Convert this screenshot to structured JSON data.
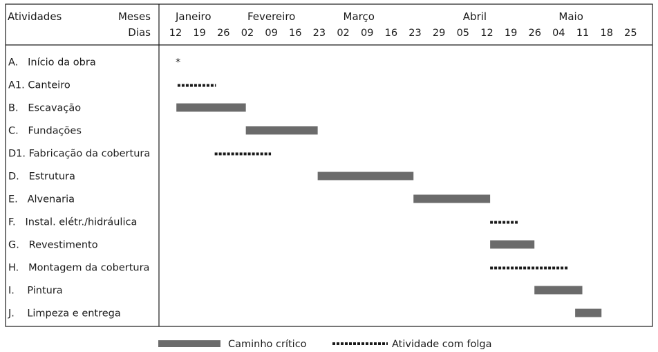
{
  "chart_data": {
    "type": "gantt",
    "header": {
      "activities_label": "Atividades",
      "months_label": "Meses",
      "days_label": "Dias"
    },
    "months": [
      {
        "name": "Janeiro",
        "column": 0
      },
      {
        "name": "Fevereiro",
        "column": 3
      },
      {
        "name": "Março",
        "column": 7
      },
      {
        "name": "Abril",
        "column": 12
      },
      {
        "name": "Maio",
        "column": 16
      }
    ],
    "day_ticks": [
      "12",
      "19",
      "26",
      "02",
      "09",
      "16",
      "23",
      "02",
      "09",
      "16",
      "23",
      "29",
      "05",
      "12",
      "19",
      "26",
      "04",
      "11",
      "18",
      "25"
    ],
    "tasks": [
      {
        "label": "A.   Início da obra",
        "kind": "milestone",
        "start": 0.22,
        "end": 0.22,
        "marker": "*"
      },
      {
        "label": "A1. Canteiro",
        "kind": "slack",
        "start": 0.2,
        "end": 1.8
      },
      {
        "label": "B.   Escavação",
        "kind": "critical",
        "start": 0.15,
        "end": 3.05
      },
      {
        "label": "C.   Fundações",
        "kind": "critical",
        "start": 3.05,
        "end": 6.05
      },
      {
        "label": "D1. Fabricação da cobertura",
        "kind": "slack",
        "start": 1.75,
        "end": 4.1
      },
      {
        "label": "D.   Estrutura",
        "kind": "critical",
        "start": 6.05,
        "end": 10.05
      },
      {
        "label": "E.   Alvenaria",
        "kind": "critical",
        "start": 10.05,
        "end": 13.25
      },
      {
        "label": "F.   Instal. elétr./hidráulica",
        "kind": "slack",
        "start": 13.25,
        "end": 14.4
      },
      {
        "label": "G.   Revestimento",
        "kind": "critical",
        "start": 13.25,
        "end": 15.1
      },
      {
        "label": "H.   Montagem da cobertura",
        "kind": "slack",
        "start": 13.25,
        "end": 16.5
      },
      {
        "label": "I.    Pintura",
        "kind": "critical",
        "start": 15.1,
        "end": 17.1
      },
      {
        "label": "J.    Limpeza e entrega",
        "kind": "critical",
        "start": 16.8,
        "end": 17.9
      }
    ],
    "legend": {
      "critical_label": "Caminho  crítico",
      "slack_label": "Atividade com folga",
      "placement": "bottom-center"
    },
    "colors": {
      "critical": "#6b6b6b",
      "slack": "#1a1a1a",
      "grid": "#1a1a1a"
    }
  }
}
